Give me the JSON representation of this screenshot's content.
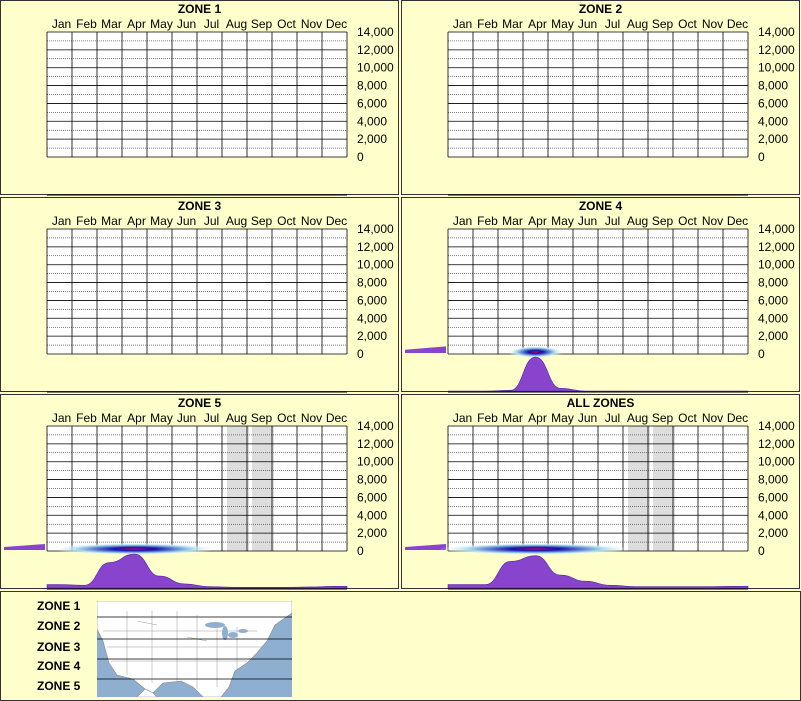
{
  "months": [
    "Jan",
    "Feb",
    "Mar",
    "Apr",
    "May",
    "Jun",
    "Jul",
    "Aug",
    "Sep",
    "Oct",
    "Nov",
    "Dec"
  ],
  "y_ticks": [
    "14,000",
    "12,000",
    "10,000",
    "8,000",
    "6,000",
    "4,000",
    "2,000",
    "0"
  ],
  "chart_data": [
    {
      "type": "area",
      "title": "ZONE 1",
      "categories": [
        "Jan",
        "Feb",
        "Mar",
        "Apr",
        "May",
        "Jun",
        "Jul",
        "Aug",
        "Sep",
        "Oct",
        "Nov",
        "Dec"
      ],
      "ylim": [
        0,
        14000
      ],
      "grid": true,
      "activity": [
        0,
        0,
        0,
        0,
        0,
        0,
        0,
        0,
        0,
        0,
        0,
        0
      ],
      "shaded_months": [],
      "left_level": 0
    },
    {
      "type": "area",
      "title": "ZONE 2",
      "categories": [
        "Jan",
        "Feb",
        "Mar",
        "Apr",
        "May",
        "Jun",
        "Jul",
        "Aug",
        "Sep",
        "Oct",
        "Nov",
        "Dec"
      ],
      "ylim": [
        0,
        14000
      ],
      "grid": true,
      "activity": [
        0,
        0,
        0,
        0,
        0,
        0,
        0,
        0,
        0,
        0,
        0,
        0
      ],
      "shaded_months": [],
      "left_level": 0
    },
    {
      "type": "area",
      "title": "ZONE 3",
      "categories": [
        "Jan",
        "Feb",
        "Mar",
        "Apr",
        "May",
        "Jun",
        "Jul",
        "Aug",
        "Sep",
        "Oct",
        "Nov",
        "Dec"
      ],
      "ylim": [
        0,
        14000
      ],
      "grid": true,
      "activity": [
        0,
        0,
        0,
        0,
        0,
        0,
        0,
        0,
        0,
        0,
        0,
        0
      ],
      "shaded_months": [],
      "left_level": 0
    },
    {
      "type": "area",
      "title": "ZONE 4",
      "categories": [
        "Jan",
        "Feb",
        "Mar",
        "Apr",
        "May",
        "Jun",
        "Jul",
        "Aug",
        "Sep",
        "Oct",
        "Nov",
        "Dec"
      ],
      "ylim": [
        0,
        14000
      ],
      "grid": true,
      "activity": [
        0,
        0,
        0.02,
        1.0,
        0.08,
        0,
        0,
        0,
        0,
        0,
        0,
        0
      ],
      "shaded_months": [],
      "left_level": 0.22
    },
    {
      "type": "area",
      "title": "ZONE 5",
      "categories": [
        "Jan",
        "Feb",
        "Mar",
        "Apr",
        "May",
        "Jun",
        "Jul",
        "Aug",
        "Sep",
        "Oct",
        "Nov",
        "Dec"
      ],
      "ylim": [
        0,
        14000
      ],
      "grid": true,
      "activity": [
        0.1,
        0.08,
        0.75,
        1.0,
        0.35,
        0.12,
        0.04,
        0.02,
        0.02,
        0.02,
        0.03,
        0.05
      ],
      "shaded_months": [
        "Aug",
        "Sep"
      ],
      "left_level": 0.2
    },
    {
      "type": "area",
      "title": "ALL ZONES",
      "categories": [
        "Jan",
        "Feb",
        "Mar",
        "Apr",
        "May",
        "Jun",
        "Jul",
        "Aug",
        "Sep",
        "Oct",
        "Nov",
        "Dec"
      ],
      "ylim": [
        0,
        14000
      ],
      "grid": true,
      "activity": [
        0.1,
        0.1,
        0.78,
        0.95,
        0.38,
        0.2,
        0.08,
        0.04,
        0.04,
        0.04,
        0.04,
        0.05
      ],
      "shaded_months": [
        "Aug",
        "Sep"
      ],
      "left_level": 0.2
    }
  ],
  "legend": {
    "zones": [
      "ZONE 1",
      "ZONE 2",
      "ZONE 3",
      "ZONE 4",
      "ZONE 5"
    ]
  },
  "colors": {
    "background": "#ffffcc",
    "grid": "#000000",
    "activity": "#8844cc",
    "shade": "#dddddd",
    "heat_low": "#aaddee",
    "heat_high": "#1111aa"
  }
}
